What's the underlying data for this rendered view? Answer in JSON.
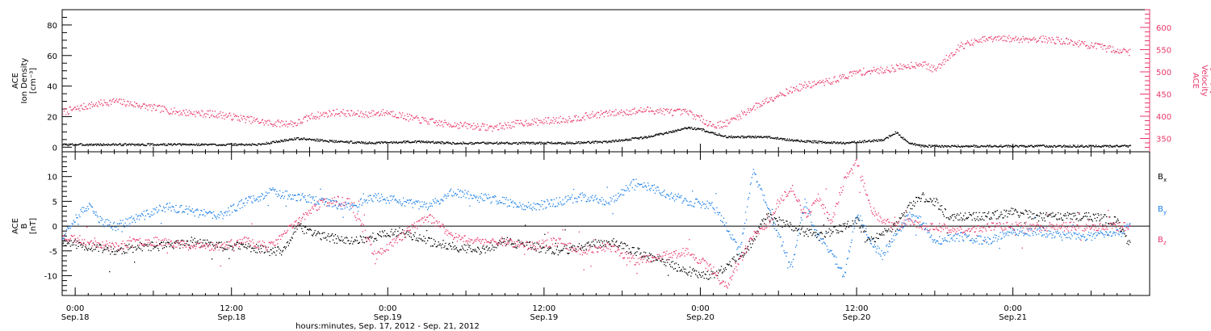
{
  "chart_data": [
    {
      "type": "scatter",
      "panel": "top",
      "xlabel": "hours:minutes, Sep. 17, 2012 - Sep. 21, 2012",
      "x_ticks": [
        {
          "time": "0:00",
          "date": "Sep.18"
        },
        {
          "time": "12:00",
          "date": "Sep.18"
        },
        {
          "time": "0:00",
          "date": "Sep.19"
        },
        {
          "time": "12:00",
          "date": "Sep.19"
        },
        {
          "time": "0:00",
          "date": "Sep.20"
        },
        {
          "time": "12:00",
          "date": "Sep.20"
        },
        {
          "time": "0:00",
          "date": "Sep.21"
        }
      ],
      "xlim_hours": [
        -1,
        82.5
      ],
      "y_left": {
        "label_lines": [
          "ACE",
          "Ion Density",
          "[cm⁻³]"
        ],
        "ylim": [
          -3,
          90
        ],
        "ticks": [
          0,
          20,
          40,
          60,
          80
        ],
        "color": "#000000"
      },
      "y_right": {
        "label_lines": [
          "ACE",
          "Velocity",
          "[km/s]"
        ],
        "ylim": [
          320,
          640
        ],
        "ticks": [
          350,
          400,
          450,
          500,
          550,
          600
        ],
        "color": "#e8386a"
      },
      "series": [
        {
          "axis": "left",
          "color": "#000000",
          "x": [
            -1,
            2,
            5,
            8,
            11,
            14,
            17,
            20,
            23,
            26,
            29,
            32,
            35,
            38,
            41,
            44,
            47,
            48,
            50,
            53,
            56,
            59,
            62,
            63,
            64,
            65,
            66,
            68,
            72,
            76,
            80,
            81
          ],
          "y": [
            2,
            2,
            2,
            2,
            2,
            2,
            6,
            4,
            3,
            4,
            3,
            3,
            3,
            3,
            4,
            7,
            13,
            12,
            7,
            7,
            4,
            3,
            5,
            10,
            3,
            1,
            1,
            1,
            1,
            1,
            1,
            1
          ]
        },
        {
          "axis": "right",
          "color": "#e8386a",
          "x": [
            -1,
            1,
            3,
            5,
            8,
            11,
            13,
            15,
            17,
            18,
            20,
            22,
            24,
            26,
            28,
            30,
            32,
            34,
            36,
            38,
            40,
            42,
            44,
            46,
            47,
            48,
            49,
            50,
            52,
            54,
            56,
            58,
            60,
            62,
            64,
            65,
            66,
            67,
            68,
            70,
            72,
            74,
            76,
            78,
            80,
            81
          ],
          "y": [
            410,
            425,
            435,
            425,
            410,
            405,
            395,
            385,
            385,
            400,
            410,
            405,
            410,
            395,
            385,
            380,
            375,
            385,
            390,
            395,
            405,
            410,
            415,
            410,
            410,
            395,
            380,
            385,
            420,
            450,
            470,
            480,
            500,
            505,
            515,
            520,
            505,
            535,
            560,
            575,
            575,
            575,
            570,
            560,
            550,
            545
          ]
        }
      ]
    },
    {
      "type": "scatter",
      "panel": "bottom",
      "y": {
        "label_lines": [
          "ACE",
          "B",
          "[nT]"
        ],
        "ylim": [
          -14,
          15
        ],
        "ticks": [
          -10,
          -5,
          0,
          5,
          10
        ]
      },
      "legend": [
        {
          "name": "B",
          "sub": "x",
          "color": "#000000"
        },
        {
          "name": "B",
          "sub": "y",
          "color": "#1a7ee6"
        },
        {
          "name": "B",
          "sub": "z",
          "color": "#e8386a"
        }
      ],
      "series": [
        {
          "name": "Bx",
          "color": "#000000",
          "x": [
            -1,
            1,
            3,
            5,
            7,
            9,
            11,
            13,
            15,
            16,
            17,
            19,
            21,
            23,
            25,
            26,
            27,
            29,
            31,
            33,
            35,
            37,
            39,
            41,
            43,
            45,
            47,
            49,
            51,
            52,
            53,
            54,
            55,
            56,
            57,
            58,
            59,
            60,
            61,
            62,
            63,
            64,
            65,
            66,
            67,
            68,
            70,
            72,
            74,
            76,
            78,
            80,
            81
          ],
          "y": [
            -3,
            -4,
            -5,
            -4,
            -4,
            -3,
            -4,
            -4,
            -5,
            -5,
            0,
            -2,
            -3,
            -2,
            -1,
            -2,
            -3,
            -4,
            -5,
            -3,
            -4,
            -5,
            -4,
            -3,
            -5,
            -7,
            -9,
            -10,
            -6,
            -3,
            2,
            1,
            0,
            -1,
            -2,
            -1,
            0,
            1,
            -3,
            -1,
            0,
            4,
            6,
            5,
            2,
            2,
            2,
            3,
            2,
            2,
            2,
            1,
            -4
          ]
        },
        {
          "name": "By",
          "color": "#1a7ee6",
          "x": [
            -1,
            0,
            1,
            2,
            3,
            5,
            7,
            9,
            11,
            13,
            15,
            17,
            19,
            21,
            23,
            25,
            27,
            29,
            31,
            33,
            35,
            37,
            39,
            41,
            43,
            45,
            47,
            49,
            50,
            51,
            52,
            53,
            54,
            55,
            56,
            57,
            58,
            59,
            60,
            61,
            62,
            63,
            64,
            65,
            66,
            68,
            70,
            72,
            74,
            76,
            78,
            80,
            81
          ],
          "y": [
            -2,
            2,
            4,
            1,
            0,
            2,
            4,
            3,
            2,
            5,
            7,
            6,
            5,
            4,
            6,
            5,
            4,
            7,
            6,
            5,
            4,
            5,
            6,
            5,
            9,
            7,
            5,
            4,
            0,
            -5,
            11,
            5,
            -2,
            -8,
            5,
            -2,
            -5,
            -10,
            3,
            -3,
            -6,
            -1,
            2,
            1,
            -3,
            -2,
            -3,
            -1,
            -1,
            -2,
            -2,
            -1,
            0
          ]
        },
        {
          "name": "Bz",
          "color": "#e8386a",
          "x": [
            -1,
            1,
            3,
            5,
            7,
            9,
            11,
            13,
            15,
            17,
            19,
            21,
            22,
            23,
            25,
            27,
            29,
            31,
            33,
            35,
            37,
            39,
            41,
            43,
            45,
            47,
            49,
            50,
            51,
            52,
            53,
            54,
            55,
            56,
            57,
            58,
            59,
            60,
            61,
            62,
            63,
            64,
            65,
            66,
            68,
            70,
            72,
            74,
            76,
            78,
            80,
            81
          ],
          "y": [
            -2,
            -3,
            -4,
            -3,
            -3,
            -4,
            -4,
            -3,
            -4,
            1,
            5,
            5,
            0,
            -6,
            -2,
            2,
            -2,
            -3,
            -3,
            -4,
            -3,
            -5,
            -4,
            -7,
            -6,
            -5,
            -9,
            -12,
            -7,
            -2,
            0,
            5,
            8,
            2,
            6,
            1,
            9,
            13,
            4,
            1,
            0,
            1,
            0,
            0,
            -1,
            0,
            0,
            0,
            0,
            0,
            0,
            0
          ]
        }
      ]
    }
  ]
}
